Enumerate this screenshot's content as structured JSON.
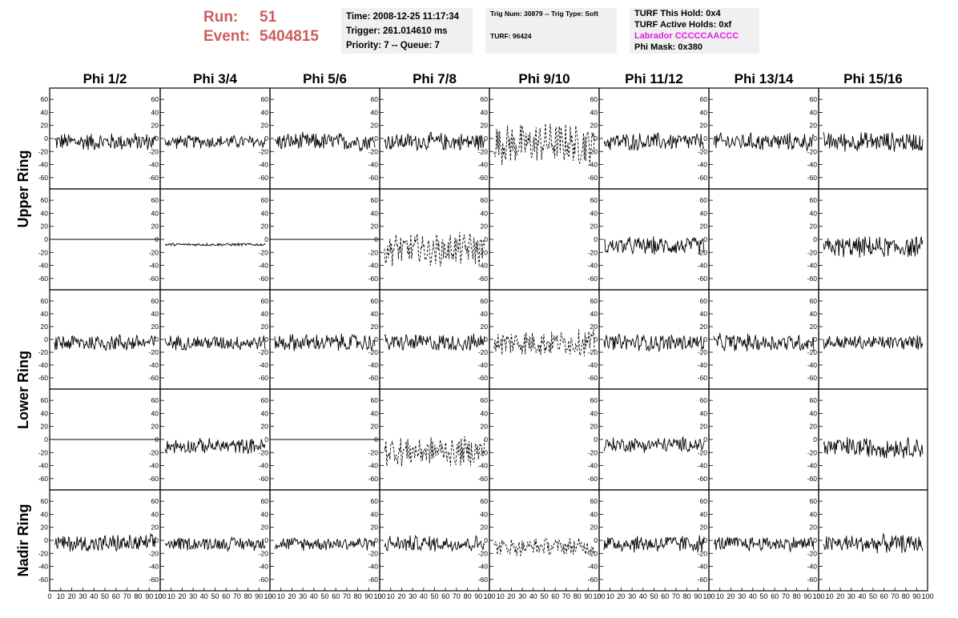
{
  "header": {
    "run_label": "Run:",
    "run_value": "51",
    "event_label": "Event:",
    "event_value": "5404815",
    "time": "Time: 2008-12-25 11:17:34",
    "trigger": "Trigger: 261.014610 ms",
    "priority": "Priority: 7 -- Queue: 7",
    "trig_num": "Trig Num: 30879 -- Trig Type: Soft",
    "turf": "TURF: 96424",
    "turf_hold": "TURF This Hold: 0x4",
    "turf_active": "TURF Active Holds: 0xf",
    "labrador": "Labrador CCCCCAACCC",
    "phi_mask": "Phi Mask: 0x380",
    "labrador_color": "#e020e0",
    "run_color": "#cd5c5c"
  },
  "chart_data": {
    "type": "line",
    "columns": [
      "Phi 1/2",
      "Phi 3/4",
      "Phi 5/6",
      "Phi 7/8",
      "Phi 9/10",
      "Phi 11/12",
      "Phi 13/14",
      "Phi 15/16"
    ],
    "ring_labels": [
      "Upper Ring",
      "Lower Ring",
      "Nadir Ring"
    ],
    "ylim": [
      -70,
      70
    ],
    "yticks": [
      -60,
      -40,
      -20,
      0,
      20,
      40,
      60
    ],
    "xlim": [
      0,
      100
    ],
    "xticks": [
      0,
      10,
      20,
      30,
      40,
      50,
      60,
      70,
      80,
      90,
      100
    ],
    "xtick_labels": [
      "0",
      "10",
      "20",
      "30",
      "40",
      "50",
      "60",
      "70",
      "80",
      "90",
      "100"
    ],
    "panel_rows": [
      [
        {
          "kind": "noise",
          "mean": -5,
          "amp": 12
        },
        {
          "kind": "noise",
          "mean": -5,
          "amp": 9
        },
        {
          "kind": "noise",
          "mean": -5,
          "amp": 12
        },
        {
          "kind": "noise",
          "mean": -5,
          "amp": 12
        },
        {
          "kind": "dashed",
          "mean": -8,
          "amp": 28
        },
        {
          "kind": "noise",
          "mean": -5,
          "amp": 12
        },
        {
          "kind": "noise",
          "mean": -5,
          "amp": 12
        },
        {
          "kind": "noise",
          "mean": -5,
          "amp": 13
        }
      ],
      [
        {
          "kind": "flat",
          "mean": 0,
          "amp": 0
        },
        {
          "kind": "smooth",
          "mean": -8,
          "amp": 2
        },
        {
          "kind": "flat",
          "mean": 0,
          "amp": 0
        },
        {
          "kind": "dashed",
          "mean": -15,
          "amp": 22
        },
        {
          "kind": "empty",
          "mean": 0,
          "amp": 0
        },
        {
          "kind": "noise",
          "mean": -10,
          "amp": 12
        },
        {
          "kind": "empty",
          "mean": 0,
          "amp": 0
        },
        {
          "kind": "noise",
          "mean": -12,
          "amp": 14
        }
      ],
      [
        {
          "kind": "noise",
          "mean": -5,
          "amp": 12
        },
        {
          "kind": "noise",
          "mean": -5,
          "amp": 10
        },
        {
          "kind": "noise",
          "mean": -5,
          "amp": 12
        },
        {
          "kind": "noise",
          "mean": -5,
          "amp": 12
        },
        {
          "kind": "dashed",
          "mean": -5,
          "amp": 18
        },
        {
          "kind": "noise",
          "mean": -5,
          "amp": 12
        },
        {
          "kind": "noise",
          "mean": -5,
          "amp": 12
        },
        {
          "kind": "noise",
          "mean": -5,
          "amp": 10
        }
      ],
      [
        {
          "kind": "flat",
          "mean": 0,
          "amp": 0
        },
        {
          "kind": "noise",
          "mean": -10,
          "amp": 10
        },
        {
          "kind": "flat",
          "mean": 0,
          "amp": 0
        },
        {
          "kind": "dashed",
          "mean": -18,
          "amp": 20
        },
        {
          "kind": "empty",
          "mean": 0,
          "amp": 0
        },
        {
          "kind": "noise",
          "mean": -8,
          "amp": 10
        },
        {
          "kind": "empty",
          "mean": 0,
          "amp": 0
        },
        {
          "kind": "noise",
          "mean": -12,
          "amp": 14
        }
      ],
      [
        {
          "kind": "noise",
          "mean": -5,
          "amp": 12
        },
        {
          "kind": "noise",
          "mean": -5,
          "amp": 9
        },
        {
          "kind": "noise",
          "mean": -5,
          "amp": 9
        },
        {
          "kind": "noise",
          "mean": -5,
          "amp": 11
        },
        {
          "kind": "dashed",
          "mean": -10,
          "amp": 12
        },
        {
          "kind": "noise",
          "mean": -5,
          "amp": 12
        },
        {
          "kind": "noise",
          "mean": -5,
          "amp": 10
        },
        {
          "kind": "noise",
          "mean": -5,
          "amp": 12
        }
      ]
    ]
  }
}
